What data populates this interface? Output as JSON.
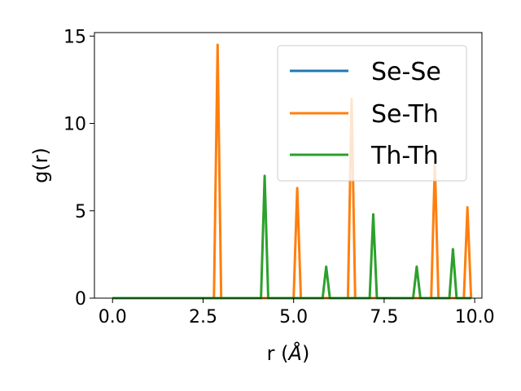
{
  "chart_data": {
    "type": "line",
    "xlabel_prefix": "r (",
    "xlabel_unit": "Å",
    "xlabel_suffix": ")",
    "ylabel": "g(r)",
    "xlim": [
      -0.5,
      10.2
    ],
    "ylim": [
      0,
      15.2
    ],
    "xticks": [
      0.0,
      2.5,
      5.0,
      7.5,
      10.0
    ],
    "xtick_labels": [
      "0.0",
      "2.5",
      "5.0",
      "7.5",
      "10.0"
    ],
    "yticks": [
      0,
      5,
      10,
      15
    ],
    "ytick_labels": [
      "0",
      "5",
      "10",
      "15"
    ],
    "grid": false,
    "legend_position": "upper-right",
    "series": [
      {
        "name": "Se-Se",
        "color": "#1f77b4",
        "x": [
          0.0,
          9.9
        ],
        "y": [
          0,
          0
        ]
      },
      {
        "name": "Se-Th",
        "color": "#ff7f0e",
        "x": [
          0.0,
          2.8,
          2.9,
          3.0,
          5.0,
          5.1,
          5.2,
          6.5,
          6.6,
          6.7,
          8.8,
          8.9,
          9.0,
          9.7,
          9.8,
          9.9
        ],
        "y": [
          0,
          0,
          14.5,
          0,
          0,
          6.3,
          0,
          0,
          11.4,
          0,
          0,
          7.7,
          0,
          0,
          5.2,
          0
        ]
      },
      {
        "name": "Th-Th",
        "color": "#2ca02c",
        "x": [
          0.0,
          4.1,
          4.2,
          4.3,
          5.8,
          5.9,
          6.0,
          7.1,
          7.2,
          7.3,
          8.3,
          8.4,
          8.5,
          9.3,
          9.4,
          9.5,
          9.9
        ],
        "y": [
          0,
          0,
          7.0,
          0,
          0,
          1.8,
          0,
          0,
          4.8,
          0,
          0,
          1.8,
          0,
          0,
          2.8,
          0,
          0
        ]
      }
    ]
  }
}
